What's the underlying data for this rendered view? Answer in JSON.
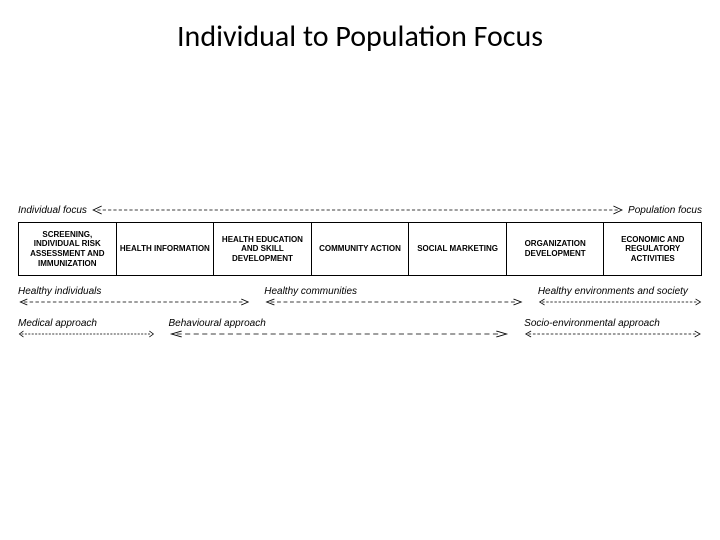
{
  "title": "Individual to Population Focus",
  "focus": {
    "left": "Individual focus",
    "right": "Population focus"
  },
  "boxes": [
    "SCREENING, INDIVIDUAL RISK ASSESSMENT AND IMMUNIZATION",
    "HEALTH INFORMATION",
    "HEALTH EDUCATION AND SKILL DEVELOPMENT",
    "COMMUNITY ACTION",
    "SOCIAL MARKETING",
    "ORGANIZATION DEVELOPMENT",
    "ECONOMIC AND REGULATORY ACTIVITIES"
  ],
  "row1": {
    "spans": [
      {
        "label": "Healthy individuals",
        "left_pct": 0,
        "width_pct": 34
      },
      {
        "label": "Healthy communities",
        "left_pct": 36,
        "width_pct": 38
      },
      {
        "label": "Healthy environments and society",
        "left_pct": 76,
        "width_pct": 24
      }
    ]
  },
  "row2": {
    "spans": [
      {
        "label": "Medical approach",
        "left_pct": 0,
        "width_pct": 20
      },
      {
        "label": "Behavioural approach",
        "left_pct": 22,
        "width_pct": 50
      },
      {
        "label": "Socio-environmental approach",
        "left_pct": 74,
        "width_pct": 26
      }
    ]
  },
  "colors": {
    "line": "#000000",
    "bg": "#ffffff"
  }
}
